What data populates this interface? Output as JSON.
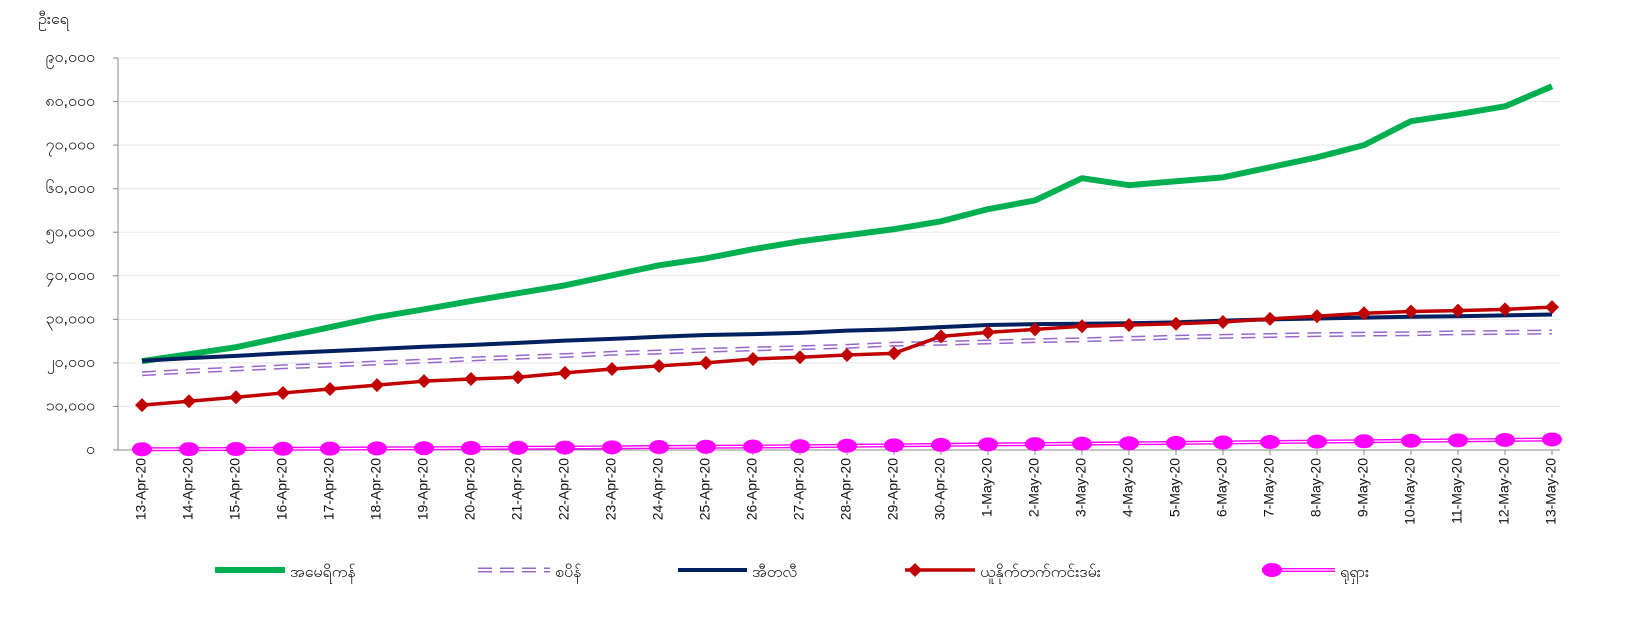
{
  "chart_data": {
    "type": "line",
    "y_label": "ဦးရေ",
    "categories": [
      "13-Apr-20",
      "14-Apr-20",
      "15-Apr-20",
      "16-Apr-20",
      "17-Apr-20",
      "18-Apr-20",
      "19-Apr-20",
      "20-Apr-20",
      "21-Apr-20",
      "22-Apr-20",
      "23-Apr-20",
      "24-Apr-20",
      "25-Apr-20",
      "26-Apr-20",
      "27-Apr-20",
      "28-Apr-20",
      "29-Apr-20",
      "30-Apr-20",
      "1-May-20",
      "2-May-20",
      "3-May-20",
      "4-May-20",
      "5-May-20",
      "6-May-20",
      "7-May-20",
      "8-May-20",
      "9-May-20",
      "10-May-20",
      "11-May-20",
      "12-May-20",
      "13-May-20"
    ],
    "series": [
      {
        "name": "အမေရိကန်",
        "color": "#00b050",
        "width": 6,
        "values": [
          20400,
          22000,
          23600,
          25900,
          28200,
          30500,
          32300,
          34200,
          36000,
          37800,
          40100,
          42400,
          44000,
          46100,
          47900,
          49300,
          50700,
          52500,
          55300,
          57300,
          62400,
          60800,
          61700,
          62600,
          64900,
          67200,
          70000,
          75500,
          77100,
          78900,
          83500
        ]
      },
      {
        "name": "စပိန်",
        "color": "#9966cc",
        "width": 5,
        "dash": true,
        "values": [
          17500,
          18100,
          18600,
          19100,
          19500,
          20000,
          20400,
          20900,
          21300,
          21700,
          22200,
          22500,
          22900,
          23200,
          23500,
          23800,
          24300,
          24500,
          24800,
          25100,
          25300,
          25600,
          25900,
          26100,
          26300,
          26500,
          26600,
          26700,
          26900,
          27000,
          27100
        ]
      },
      {
        "name": "အီတလီ",
        "color": "#002060",
        "width": 4,
        "values": [
          20500,
          21100,
          21600,
          22200,
          22700,
          23200,
          23700,
          24100,
          24600,
          25100,
          25500,
          26000,
          26400,
          26600,
          26900,
          27400,
          27700,
          28200,
          28700,
          28900,
          29000,
          29100,
          29300,
          29700,
          30000,
          30200,
          30400,
          30600,
          30700,
          30900,
          31100
        ]
      },
      {
        "name": "ယူနိုက်တက်ကင်းဒမ်း",
        "color": "#c00000",
        "width": 3.5,
        "marker": "diamond",
        "values": [
          10300,
          11200,
          12100,
          13100,
          14000,
          14900,
          15800,
          16300,
          16700,
          17700,
          18600,
          19300,
          20000,
          20900,
          21300,
          21800,
          22200,
          26100,
          27000,
          27700,
          28400,
          28700,
          29000,
          29400,
          30100,
          30700,
          31400,
          31800,
          32000,
          32300,
          32800
        ]
      },
      {
        "name": "ရုရှား",
        "color": "#ff00ff",
        "width": 4,
        "marker": "circle",
        "values": [
          170,
          198,
          232,
          273,
          313,
          361,
          405,
          456,
          513,
          555,
          615,
          681,
          747,
          794,
          867,
          972,
          1073,
          1169,
          1280,
          1356,
          1451,
          1537,
          1625,
          1723,
          1827,
          1915,
          2009,
          2116,
          2212,
          2305,
          2418
        ]
      }
    ],
    "ylim": [
      0,
      90000
    ],
    "yticks": [
      {
        "value": 0,
        "label": "၀"
      },
      {
        "value": 10000,
        "label": "၁၀,၀၀၀"
      },
      {
        "value": 20000,
        "label": "၂၀,၀၀၀"
      },
      {
        "value": 30000,
        "label": "၃၀,၀၀၀"
      },
      {
        "value": 40000,
        "label": "၄၀,၀၀၀"
      },
      {
        "value": 50000,
        "label": "၅၀,၀၀၀"
      },
      {
        "value": 60000,
        "label": "၆၀,၀၀၀"
      },
      {
        "value": 70000,
        "label": "၇၀,၀၀၀"
      },
      {
        "value": 80000,
        "label": "၈၀,၀၀၀"
      },
      {
        "value": 90000,
        "label": "၉၀,၀၀၀"
      }
    ],
    "grid": true,
    "legend": "bottom"
  }
}
